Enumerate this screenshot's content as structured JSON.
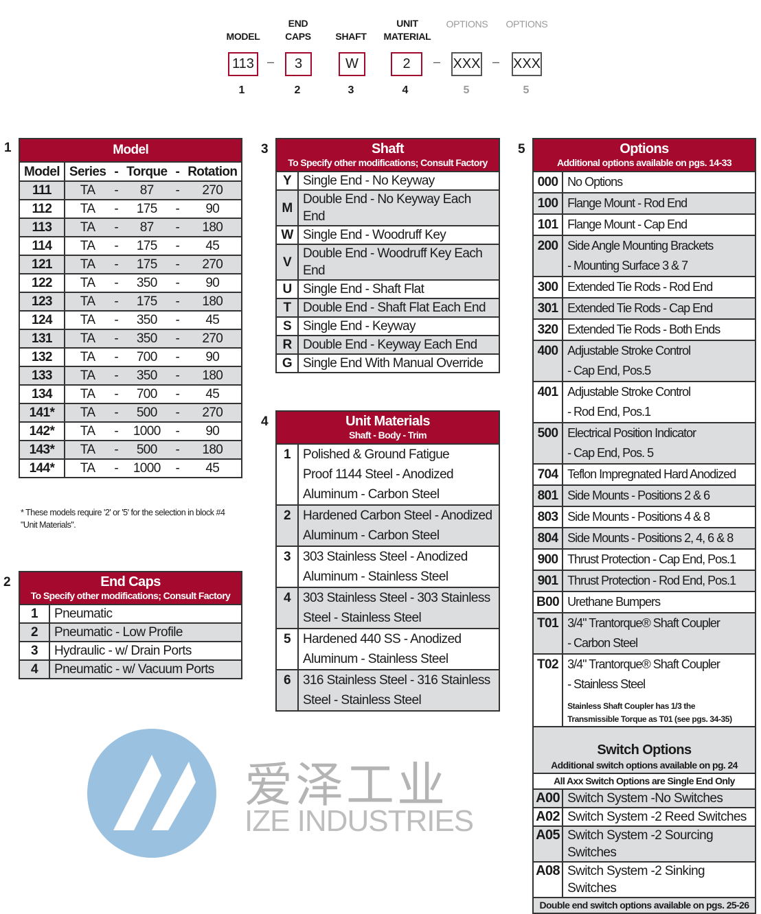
{
  "code": {
    "labels": [
      {
        "text": "MODEL"
      },
      {
        "text": "END CAPS"
      },
      {
        "text": "SHAFT"
      },
      {
        "text": "UNIT MATERIAL"
      },
      {
        "text": "OPTIONS"
      },
      {
        "text": "OPTIONS"
      }
    ],
    "boxes": [
      "113",
      "3",
      "W",
      "2",
      "XXX",
      "XXX"
    ],
    "dash": "–",
    "numbers": [
      "1",
      "2",
      "3",
      "4",
      "5",
      "5"
    ]
  },
  "colors": {
    "accent": "#a50a2e",
    "row_shade": "#dcdddf"
  },
  "model": {
    "section": "1",
    "title": "Model",
    "headers": [
      "Model",
      "Series",
      "-",
      "Torque",
      "-",
      "Rotation"
    ],
    "rows": [
      [
        "111",
        "TA",
        "-",
        "87",
        "-",
        "270"
      ],
      [
        "112",
        "TA",
        "-",
        "175",
        "-",
        "90"
      ],
      [
        "113",
        "TA",
        "-",
        "87",
        "-",
        "180"
      ],
      [
        "114",
        "TA",
        "-",
        "175",
        "-",
        "45"
      ],
      [
        "121",
        "TA",
        "-",
        "175",
        "-",
        "270"
      ],
      [
        "122",
        "TA",
        "-",
        "350",
        "-",
        "90"
      ],
      [
        "123",
        "TA",
        "-",
        "175",
        "-",
        "180"
      ],
      [
        "124",
        "TA",
        "-",
        "350",
        "-",
        "45"
      ],
      [
        "131",
        "TA",
        "-",
        "350",
        "-",
        "270"
      ],
      [
        "132",
        "TA",
        "-",
        "700",
        "-",
        "90"
      ],
      [
        "133",
        "TA",
        "-",
        "350",
        "-",
        "180"
      ],
      [
        "134",
        "TA",
        "-",
        "700",
        "-",
        "45"
      ],
      [
        "141*",
        "TA",
        "-",
        "500",
        "-",
        "270"
      ],
      [
        "142*",
        "TA",
        "-",
        "1000",
        "-",
        "90"
      ],
      [
        "143*",
        "TA",
        "-",
        "500",
        "-",
        "180"
      ],
      [
        "144*",
        "TA",
        "-",
        "1000",
        "-",
        "45"
      ]
    ],
    "footnote": "*  These models require '2' or '5' for the selection in block #4 \"Unit Materials\"."
  },
  "end_caps": {
    "section": "2",
    "title": "End Caps",
    "subtitle": "To Specify other modifications; Consult Factory",
    "rows": [
      [
        "1",
        "Pneumatic"
      ],
      [
        "2",
        "Pneumatic - Low Profile"
      ],
      [
        "3",
        "Hydraulic - w/ Drain Ports"
      ],
      [
        "4",
        "Pneumatic - w/ Vacuum Ports"
      ]
    ]
  },
  "shaft": {
    "section": "3",
    "title": "Shaft",
    "subtitle": "To Specify other modifications; Consult Factory",
    "rows": [
      [
        "Y",
        "Single End - No Keyway"
      ],
      [
        "M",
        "Double End - No Keyway Each End"
      ],
      [
        "W",
        "Single End - Woodruff Key"
      ],
      [
        "V",
        "Double End - Woodruff Key Each End"
      ],
      [
        "U",
        "Single End - Shaft Flat"
      ],
      [
        "T",
        "Double End - Shaft Flat Each End"
      ],
      [
        "S",
        "Single  End - Keyway"
      ],
      [
        "R",
        "Double End - Keyway Each End"
      ],
      [
        "G",
        "Single End With Manual Override"
      ]
    ]
  },
  "unit_materials": {
    "section": "4",
    "title": "Unit Materials",
    "subtitle": "Shaft - Body - Trim",
    "rows": [
      {
        "code": "1",
        "lines": [
          "Polished & Ground Fatigue",
          "Proof 1144 Steel - Anodized",
          "Aluminum - Carbon Steel"
        ]
      },
      {
        "code": "2",
        "lines": [
          "Hardened Carbon Steel - Anodized",
          "Aluminum  -  Carbon Steel"
        ]
      },
      {
        "code": "3",
        "lines": [
          "303 Stainless Steel - Anodized",
          "Aluminum - Stainless Steel"
        ]
      },
      {
        "code": "4",
        "lines": [
          "303 Stainless Steel - 303 Stainless",
          "Steel - Stainless Steel"
        ]
      },
      {
        "code": "5",
        "lines": [
          "Hardened 440 SS - Anodized",
          "Aluminum - Stainless Steel"
        ]
      },
      {
        "code": "6",
        "lines": [
          "316 Stainless Steel - 316 Stainless",
          "Steel - Stainless Steel"
        ]
      }
    ]
  },
  "options": {
    "section": "5",
    "title": "Options",
    "subtitle": "Additional options available on pgs. 14-33",
    "rows": [
      {
        "code": "000",
        "lines": [
          "No Options"
        ]
      },
      {
        "code": "100",
        "lines": [
          "Flange Mount - Rod End"
        ]
      },
      {
        "code": "101",
        "lines": [
          "Flange Mount - Cap End"
        ]
      },
      {
        "code": "200",
        "lines": [
          "Side Angle Mounting Brackets",
          "- Mounting Surface 3 & 7"
        ]
      },
      {
        "code": "300",
        "lines": [
          "Extended Tie Rods - Rod End"
        ]
      },
      {
        "code": "301",
        "lines": [
          "Extended Tie Rods - Cap End"
        ]
      },
      {
        "code": "320",
        "lines": [
          "Extended Tie Rods - Both Ends"
        ]
      },
      {
        "code": "400",
        "lines": [
          "Adjustable Stroke Control",
          "- Cap End, Pos.5"
        ]
      },
      {
        "code": "401",
        "lines": [
          "Adjustable Stroke Control",
          "- Rod End, Pos.1"
        ]
      },
      {
        "code": "500",
        "lines": [
          "Electrical Position Indicator",
          "- Cap End, Pos. 5"
        ]
      },
      {
        "code": "704",
        "lines": [
          "Teflon Impregnated Hard Anodized"
        ]
      },
      {
        "code": "801",
        "lines": [
          "Side Mounts - Positions 2 & 6"
        ]
      },
      {
        "code": "803",
        "lines": [
          "Side Mounts - Positions 4 & 8"
        ]
      },
      {
        "code": "804",
        "lines": [
          "Side Mounts - Positions 2, 4, 6 & 8"
        ]
      },
      {
        "code": "900",
        "lines": [
          "Thrust Protection - Cap End, Pos.1"
        ]
      },
      {
        "code": "901",
        "lines": [
          "Thrust Protection - Rod End, Pos.1"
        ]
      },
      {
        "code": "B00",
        "lines": [
          "Urethane Bumpers"
        ]
      },
      {
        "code": "T01",
        "lines": [
          "3/4\" Trantorque® Shaft Coupler",
          "- Carbon Steel"
        ]
      },
      {
        "code": "T02",
        "lines": [
          "3/4\" Trantorque® Shaft Coupler",
          "- Stainless Steel"
        ],
        "note": [
          "Stainless Shaft Coupler has 1/3 the",
          "Transmissible Torque as T01 (see pgs. 34-35)"
        ]
      }
    ],
    "switch": {
      "title": "Switch Options",
      "subtitle": "Additional switch options available on pg. 24",
      "single_note": "All Axx Switch Options are Single End Only",
      "rows": [
        [
          "A00",
          "Switch System -No Switches"
        ],
        [
          "A02",
          "Switch System -2 Reed Switches"
        ],
        [
          "A05",
          "Switch System -2 Sourcing Switches"
        ],
        [
          "A08",
          "Switch System -2 Sinking Switches"
        ]
      ],
      "footer": "Double end switch options available on pgs. 25-26"
    }
  },
  "watermark": {
    "chinese": "爱泽工业",
    "english": "IZE INDUSTRIES",
    "logo_color": "#4a8fc8"
  }
}
